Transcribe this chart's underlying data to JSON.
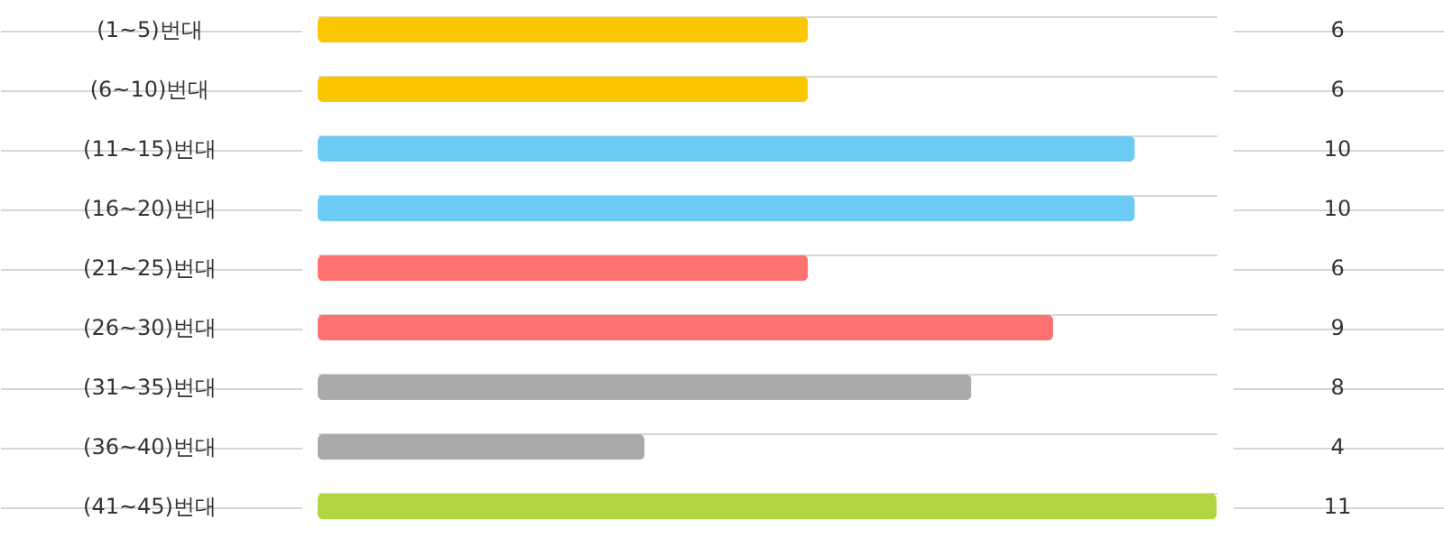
{
  "chart_data": {
    "type": "bar",
    "orientation": "horizontal",
    "categories": [
      "(1~5)번대",
      "(6~10)번대",
      "(11~15)번대",
      "(16~20)번대",
      "(21~25)번대",
      "(26~30)번대",
      "(31~35)번대",
      "(36~40)번대",
      "(41~45)번대"
    ],
    "values": [
      6,
      6,
      10,
      10,
      6,
      9,
      8,
      4,
      11
    ],
    "colors": [
      "#fbc700",
      "#fbc700",
      "#6ccbf4",
      "#6ccbf4",
      "#ff7070",
      "#ff7070",
      "#aaaaaa",
      "#aaaaaa",
      "#b0d641"
    ],
    "xlim": [
      0,
      11
    ],
    "data_labels": true
  }
}
